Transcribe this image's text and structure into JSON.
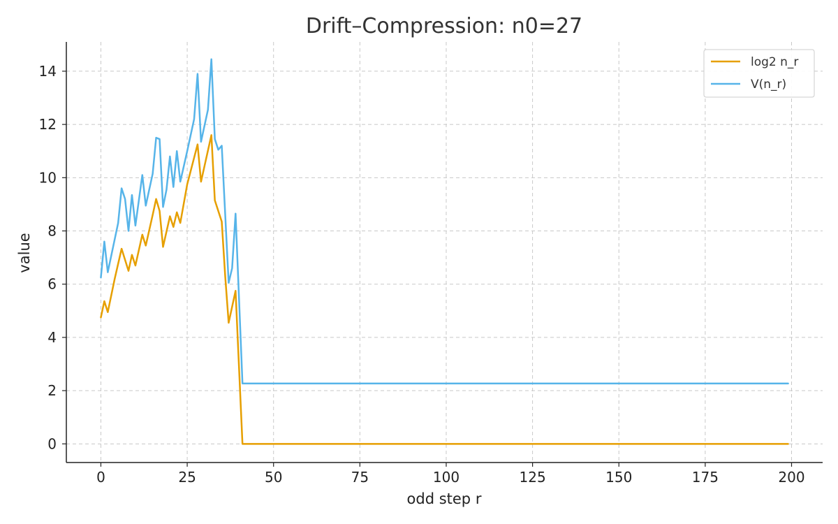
{
  "chart_data": {
    "type": "line",
    "title": "Drift–Compression: n0=27",
    "xlabel": "odd step r",
    "ylabel": "value",
    "xlim": [
      -10,
      209
    ],
    "ylim": [
      -0.7,
      15.1
    ],
    "xticks": [
      0,
      25,
      50,
      75,
      100,
      125,
      150,
      175,
      200
    ],
    "yticks": [
      0,
      2,
      4,
      6,
      8,
      10,
      12,
      14
    ],
    "grid": true,
    "legend_position": "top-right",
    "series": [
      {
        "name": "log2 n_r",
        "color": "#E69F00",
        "points": [
          [
            0,
            4.75
          ],
          [
            1,
            5.36
          ],
          [
            2,
            4.95
          ],
          [
            4,
            6.2
          ],
          [
            6,
            7.33
          ],
          [
            8,
            6.5
          ],
          [
            9,
            7.1
          ],
          [
            10,
            6.7
          ],
          [
            12,
            7.86
          ],
          [
            13,
            7.45
          ],
          [
            15,
            8.6
          ],
          [
            16,
            9.2
          ],
          [
            17,
            8.75
          ],
          [
            18,
            7.4
          ],
          [
            20,
            8.55
          ],
          [
            21,
            8.15
          ],
          [
            22,
            8.7
          ],
          [
            23,
            8.3
          ],
          [
            25,
            9.75
          ],
          [
            28,
            11.25
          ],
          [
            29,
            9.85
          ],
          [
            32,
            11.6
          ],
          [
            33,
            9.15
          ],
          [
            35,
            8.35
          ],
          [
            36,
            6.3
          ],
          [
            37,
            4.55
          ],
          [
            39,
            5.75
          ],
          [
            41,
            0
          ],
          [
            199,
            0
          ]
        ]
      },
      {
        "name": "V(n_r)",
        "color": "#56B4E9",
        "points": [
          [
            0,
            6.25
          ],
          [
            1,
            7.6
          ],
          [
            2,
            6.45
          ],
          [
            5,
            8.3
          ],
          [
            6,
            9.6
          ],
          [
            7,
            9.2
          ],
          [
            8,
            8.0
          ],
          [
            9,
            9.35
          ],
          [
            10,
            8.2
          ],
          [
            12,
            10.1
          ],
          [
            13,
            8.95
          ],
          [
            15,
            10.15
          ],
          [
            16,
            11.5
          ],
          [
            17,
            11.45
          ],
          [
            18,
            8.9
          ],
          [
            19,
            9.55
          ],
          [
            20,
            10.8
          ],
          [
            21,
            9.65
          ],
          [
            22,
            11.0
          ],
          [
            23,
            9.85
          ],
          [
            25,
            11.0
          ],
          [
            27,
            12.2
          ],
          [
            28,
            13.9
          ],
          [
            29,
            11.35
          ],
          [
            31,
            12.55
          ],
          [
            32,
            14.45
          ],
          [
            33,
            11.45
          ],
          [
            34,
            11.05
          ],
          [
            35,
            11.2
          ],
          [
            37,
            6.05
          ],
          [
            38,
            6.6
          ],
          [
            39,
            8.65
          ],
          [
            41,
            2.27
          ],
          [
            199,
            2.27
          ]
        ]
      }
    ]
  }
}
